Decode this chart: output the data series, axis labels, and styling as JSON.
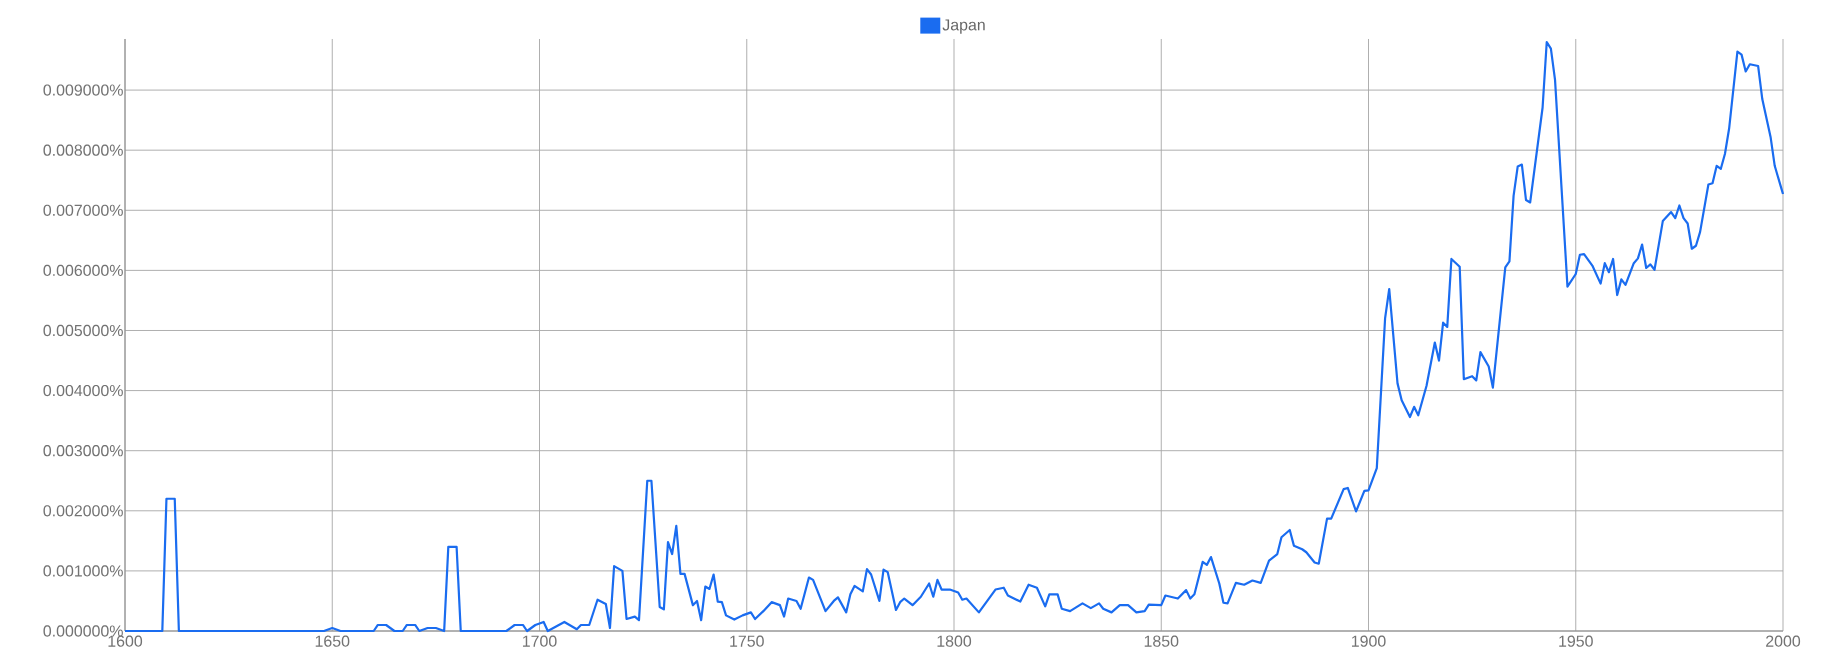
{
  "chart_data": {
    "type": "line",
    "x": [
      1600,
      1609,
      1610,
      1612,
      1613,
      1648,
      1650,
      1652,
      1660,
      1661,
      1663,
      1665,
      1667,
      1668,
      1670,
      1671,
      1673,
      1675,
      1677,
      1678,
      1680,
      1681,
      1692,
      1694,
      1696,
      1697,
      1699,
      1701,
      1702,
      1706,
      1709,
      1710,
      1712,
      1714,
      1716,
      1717,
      1718,
      1720,
      1721,
      1723,
      1724,
      1726,
      1727,
      1729,
      1730,
      1731,
      1732,
      1733,
      1734,
      1735,
      1737,
      1738,
      1739,
      1740,
      1741,
      1742,
      1743,
      1744,
      1745,
      1747,
      1749,
      1751,
      1752,
      1754,
      1756,
      1758,
      1759,
      1760,
      1762,
      1763,
      1765,
      1766,
      1769,
      1771,
      1772,
      1774,
      1775,
      1776,
      1778,
      1779,
      1780,
      1782,
      1783,
      1784,
      1786,
      1787,
      1788,
      1790,
      1792,
      1794,
      1795,
      1796,
      1797,
      1799,
      1801,
      1802,
      1803,
      1806,
      1810,
      1812,
      1813,
      1816,
      1818,
      1820,
      1822,
      1823,
      1825,
      1826,
      1828,
      1831,
      1833,
      1835,
      1836,
      1838,
      1840,
      1842,
      1844,
      1846,
      1847,
      1850,
      1851,
      1854,
      1856,
      1857,
      1858,
      1860,
      1861,
      1862,
      1864,
      1865,
      1866,
      1868,
      1870,
      1872,
      1874,
      1876,
      1878,
      1879,
      1881,
      1882,
      1884,
      1885,
      1887,
      1888,
      1890,
      1891,
      1894,
      1895,
      1897,
      1899,
      1900,
      1902,
      1904,
      1905,
      1907,
      1908,
      1910,
      1911,
      1912,
      1914,
      1916,
      1917,
      1918,
      1919,
      1920,
      1922,
      1923,
      1925,
      1926,
      1927,
      1929,
      1930,
      1933,
      1934,
      1935,
      1936,
      1937,
      1938,
      1939,
      1942,
      1943,
      1944,
      1945,
      1948,
      1950,
      1951,
      1952,
      1954,
      1956,
      1957,
      1958,
      1959,
      1960,
      1961,
      1962,
      1964,
      1965,
      1966,
      1967,
      1968,
      1969,
      1971,
      1973,
      1974,
      1975,
      1976,
      1977,
      1978,
      1979,
      1980,
      1982,
      1983,
      1984,
      1985,
      1986,
      1987,
      1989,
      1990,
      1991,
      1992,
      1994,
      1995,
      1997,
      1998,
      2000
    ],
    "series": [
      {
        "name": "Japan",
        "color": "#1a6cf0",
        "values": [
          0,
          0,
          0.0022,
          0.0022,
          0,
          0,
          5e-05,
          0,
          0,
          0.0001,
          0.0001,
          0,
          0,
          0.0001,
          0.0001,
          0,
          5e-05,
          5e-05,
          0,
          0.0014,
          0.0014,
          0,
          0,
          0.0001,
          0.0001,
          0,
          0.0001,
          0.00015,
          0,
          0.00015,
          3e-05,
          0.0001,
          0.0001,
          0.00052,
          0.00045,
          5e-05,
          0.00108,
          0.001,
          0.0002,
          0.00024,
          0.00018,
          0.0025,
          0.0025,
          0.0004,
          0.00036,
          0.00148,
          0.00128,
          0.00175,
          0.00095,
          0.00095,
          0.00043,
          0.0005,
          0.00018,
          0.00074,
          0.0007,
          0.00094,
          0.00049,
          0.00048,
          0.00026,
          0.00019,
          0.00026,
          0.00031,
          0.0002,
          0.00033,
          0.00048,
          0.00043,
          0.00024,
          0.00054,
          0.0005,
          0.00037,
          0.00089,
          0.00085,
          0.00033,
          0.0005,
          0.00056,
          0.00031,
          0.00061,
          0.00075,
          0.00066,
          0.00103,
          0.00094,
          0.0005,
          0.00102,
          0.00098,
          0.00035,
          0.00048,
          0.00054,
          0.00043,
          0.00057,
          0.00079,
          0.00057,
          0.00085,
          0.00069,
          0.00069,
          0.00064,
          0.00052,
          0.00054,
          0.00031,
          0.00069,
          0.00072,
          0.00059,
          0.00049,
          0.00077,
          0.00072,
          0.00041,
          0.00061,
          0.00061,
          0.00037,
          0.00033,
          0.00046,
          0.00038,
          0.00046,
          0.00037,
          0.00031,
          0.00043,
          0.00043,
          0.00031,
          0.00033,
          0.00044,
          0.00043,
          0.00059,
          0.00054,
          0.00068,
          0.00054,
          0.00061,
          0.00115,
          0.0011,
          0.00123,
          0.00079,
          0.00047,
          0.00046,
          0.0008,
          0.00077,
          0.00084,
          0.0008,
          0.00117,
          0.00128,
          0.00156,
          0.00168,
          0.00142,
          0.00136,
          0.00131,
          0.00114,
          0.00112,
          0.00187,
          0.00187,
          0.00236,
          0.00238,
          0.00199,
          0.00233,
          0.00234,
          0.00271,
          0.0052,
          0.00569,
          0.00412,
          0.00384,
          0.00356,
          0.00373,
          0.00359,
          0.00408,
          0.0048,
          0.0045,
          0.00513,
          0.00506,
          0.00619,
          0.00606,
          0.00419,
          0.00424,
          0.00417,
          0.00464,
          0.0044,
          0.00405,
          0.00605,
          0.00615,
          0.00724,
          0.00773,
          0.00776,
          0.00717,
          0.00713,
          0.00871,
          0.0098,
          0.00969,
          0.00917,
          0.00573,
          0.00594,
          0.00626,
          0.00627,
          0.00608,
          0.00578,
          0.00612,
          0.00597,
          0.00619,
          0.00559,
          0.00585,
          0.00576,
          0.00612,
          0.0062,
          0.00643,
          0.00604,
          0.0061,
          0.00601,
          0.00682,
          0.00697,
          0.00687,
          0.00708,
          0.00687,
          0.00678,
          0.00636,
          0.00641,
          0.00664,
          0.00743,
          0.00745,
          0.00774,
          0.00769,
          0.00794,
          0.00836,
          0.00964,
          0.00959,
          0.00931,
          0.00943,
          0.0094,
          0.00885,
          0.00822,
          0.00774,
          0.00727
        ]
      }
    ],
    "xlim": [
      1600,
      2000
    ],
    "xticks": [
      1600,
      1650,
      1700,
      1750,
      1800,
      1850,
      1900,
      1950,
      2000
    ],
    "ylim": [
      0,
      0.00985
    ],
    "yticks": [
      {
        "value": 0,
        "label": "0.000000%"
      },
      {
        "value": 0.001,
        "label": "0.001000%"
      },
      {
        "value": 0.002,
        "label": "0.002000%"
      },
      {
        "value": 0.003,
        "label": "0.003000%"
      },
      {
        "value": 0.004,
        "label": "0.004000%"
      },
      {
        "value": 0.005,
        "label": "0.005000%"
      },
      {
        "value": 0.006,
        "label": "0.006000%"
      },
      {
        "value": 0.007,
        "label": "0.007000%"
      },
      {
        "value": 0.008,
        "label": "0.008000%"
      },
      {
        "value": 0.009,
        "label": "0.009000%"
      }
    ],
    "grid": true,
    "legend": "top",
    "marker": "none",
    "line_style": "solid"
  }
}
